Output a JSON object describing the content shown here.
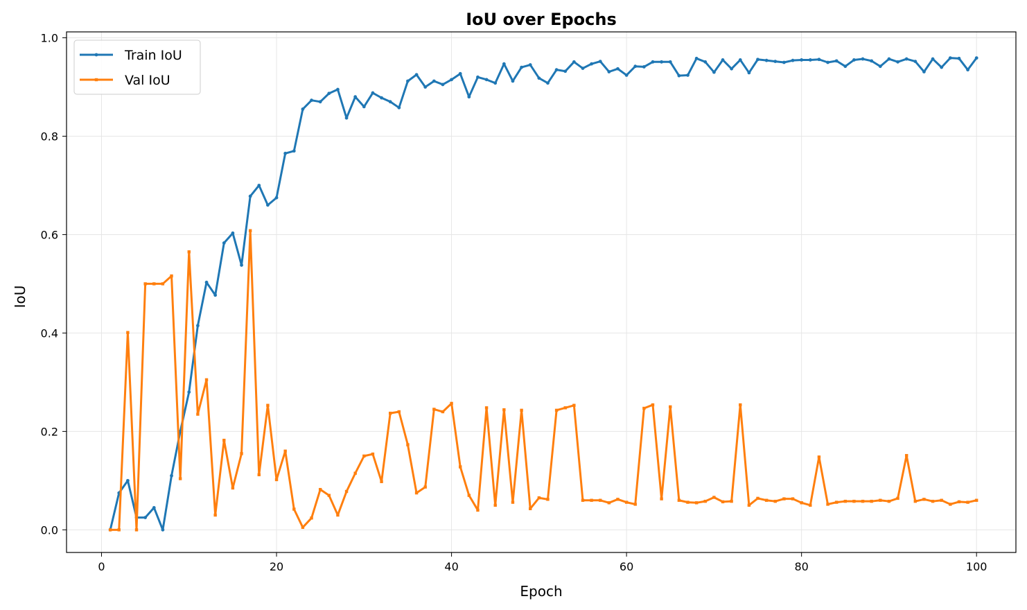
{
  "chart_data": {
    "type": "line",
    "title": "IoU over Epochs",
    "xlabel": "Epoch",
    "ylabel": "IoU",
    "xlim": [
      -4,
      104.5
    ],
    "ylim": [
      -0.046,
      1.012
    ],
    "xticks": [
      0,
      20,
      40,
      60,
      80,
      100
    ],
    "yticks": [
      0.0,
      0.2,
      0.4,
      0.6,
      0.8,
      1.0
    ],
    "ytick_labels": [
      "0.0",
      "0.2",
      "0.4",
      "0.6",
      "0.8",
      "1.0"
    ],
    "grid": true,
    "legend_position": "upper-left",
    "x": [
      1,
      2,
      3,
      4,
      5,
      6,
      7,
      8,
      9,
      10,
      11,
      12,
      13,
      14,
      15,
      16,
      17,
      18,
      19,
      20,
      21,
      22,
      23,
      24,
      25,
      26,
      27,
      28,
      29,
      30,
      31,
      32,
      33,
      34,
      35,
      36,
      37,
      38,
      39,
      40,
      41,
      42,
      43,
      44,
      45,
      46,
      47,
      48,
      49,
      50,
      51,
      52,
      53,
      54,
      55,
      56,
      57,
      58,
      59,
      60,
      61,
      62,
      63,
      64,
      65,
      66,
      67,
      68,
      69,
      70,
      71,
      72,
      73,
      74,
      75,
      76,
      77,
      78,
      79,
      80,
      81,
      82,
      83,
      84,
      85,
      86,
      87,
      88,
      89,
      90,
      91,
      92,
      93,
      94,
      95,
      96,
      97,
      98,
      99,
      100
    ],
    "series": [
      {
        "name": "Train IoU",
        "color": "#1f77b4",
        "marker": "circle",
        "values": [
          0.0,
          0.075,
          0.1,
          0.025,
          0.025,
          0.045,
          0.0,
          0.11,
          0.2,
          0.28,
          0.415,
          0.503,
          0.477,
          0.583,
          0.603,
          0.538,
          0.678,
          0.7,
          0.66,
          0.675,
          0.765,
          0.77,
          0.855,
          0.873,
          0.87,
          0.887,
          0.895,
          0.837,
          0.88,
          0.86,
          0.888,
          0.878,
          0.87,
          0.858,
          0.912,
          0.925,
          0.9,
          0.912,
          0.905,
          0.915,
          0.927,
          0.88,
          0.92,
          0.915,
          0.908,
          0.947,
          0.912,
          0.94,
          0.945,
          0.918,
          0.908,
          0.935,
          0.932,
          0.951,
          0.938,
          0.947,
          0.952,
          0.931,
          0.937,
          0.924,
          0.942,
          0.941,
          0.951,
          0.951,
          0.951,
          0.923,
          0.924,
          0.958,
          0.951,
          0.93,
          0.955,
          0.937,
          0.955,
          0.929,
          0.956,
          0.954,
          0.952,
          0.95,
          0.954,
          0.955,
          0.955,
          0.956,
          0.95,
          0.953,
          0.942,
          0.955,
          0.957,
          0.953,
          0.942,
          0.957,
          0.951,
          0.957,
          0.952,
          0.931,
          0.957,
          0.94,
          0.959,
          0.958,
          0.935,
          0.959
        ]
      },
      {
        "name": "Val IoU",
        "color": "#ff7f0e",
        "marker": "square",
        "values": [
          0.0,
          0.0,
          0.401,
          0.0,
          0.5,
          0.5,
          0.5,
          0.516,
          0.104,
          0.565,
          0.235,
          0.305,
          0.03,
          0.182,
          0.085,
          0.155,
          0.608,
          0.112,
          0.253,
          0.102,
          0.16,
          0.042,
          0.005,
          0.024,
          0.082,
          0.07,
          0.03,
          0.078,
          0.115,
          0.15,
          0.154,
          0.098,
          0.237,
          0.24,
          0.173,
          0.075,
          0.087,
          0.245,
          0.24,
          0.257,
          0.128,
          0.07,
          0.04,
          0.248,
          0.05,
          0.244,
          0.056,
          0.243,
          0.043,
          0.065,
          0.062,
          0.243,
          0.248,
          0.253,
          0.06,
          0.06,
          0.06,
          0.055,
          0.062,
          0.056,
          0.052,
          0.247,
          0.254,
          0.063,
          0.25,
          0.06,
          0.056,
          0.055,
          0.058,
          0.066,
          0.057,
          0.058,
          0.254,
          0.05,
          0.064,
          0.06,
          0.058,
          0.063,
          0.063,
          0.055,
          0.05,
          0.148,
          0.052,
          0.056,
          0.058,
          0.058,
          0.058,
          0.058,
          0.06,
          0.058,
          0.064,
          0.151,
          0.058,
          0.062,
          0.058,
          0.06,
          0.052,
          0.057,
          0.056,
          0.06
        ]
      }
    ]
  }
}
